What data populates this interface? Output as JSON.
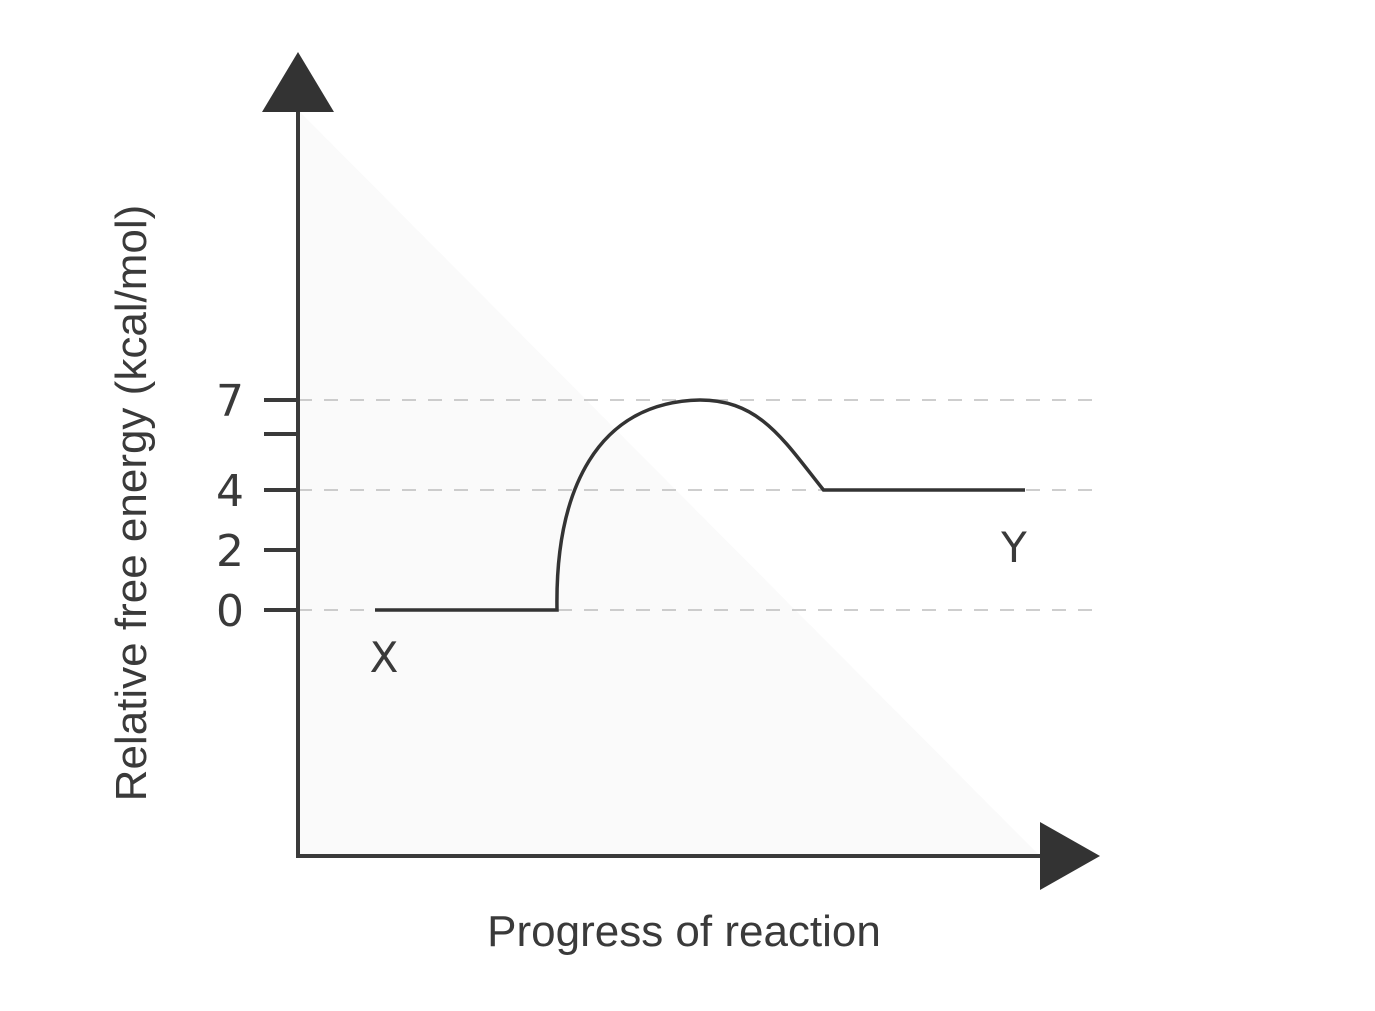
{
  "chart_data": {
    "type": "line",
    "xlabel": "Progress of reaction",
    "ylabel": "Relative free  energy (kcal/mol)",
    "yticks": [
      0,
      2,
      4,
      7
    ],
    "ylim": [
      0,
      7
    ],
    "reference_lines": [
      0,
      4,
      7
    ],
    "grid": false,
    "series": [
      {
        "points": [
          {
            "x": 0.0,
            "y": 0
          },
          {
            "x": 0.28,
            "y": 0
          },
          {
            "x": 0.5,
            "y": 7
          },
          {
            "x": 0.69,
            "y": 4
          },
          {
            "x": 1.0,
            "y": 4
          }
        ]
      }
    ],
    "annotations": [
      {
        "text": "X",
        "x": 0.0,
        "y": 0
      },
      {
        "text": "Y",
        "x": 1.0,
        "y": 4
      }
    ],
    "colors": {
      "line": "#333333",
      "axis": "#3a3a3a",
      "reference": "#bdbdbd"
    }
  }
}
